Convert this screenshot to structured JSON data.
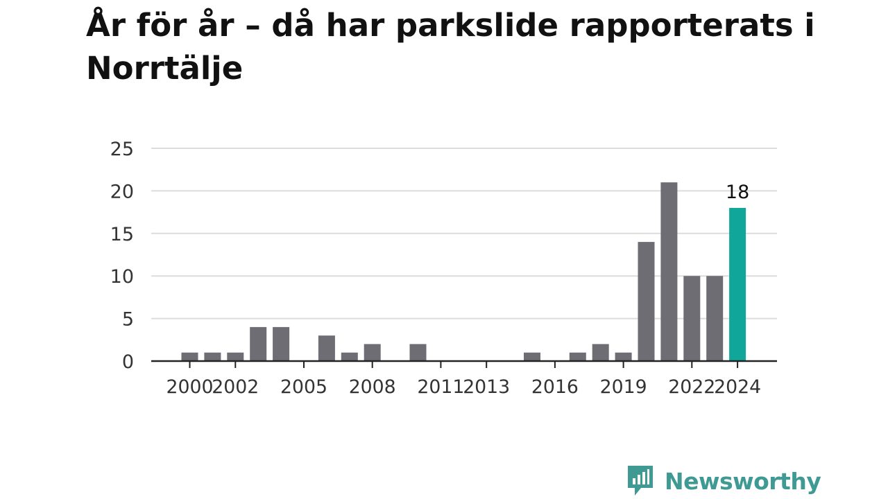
{
  "title": "År för år – då har parkslide rapporterats i Norrtälje",
  "brand": {
    "name": "Newsworthy",
    "color": "#3f9a93"
  },
  "colors": {
    "bar": "#6e6d73",
    "highlight": "#10a79a",
    "grid": "#dcdcdc",
    "axis": "#222222",
    "text": "#333333"
  },
  "chart_data": {
    "type": "bar",
    "title": "År för år – då har parkslide rapporterats i Norrtälje",
    "xlabel": "",
    "ylabel": "",
    "categories": [
      "2000",
      "2001",
      "2002",
      "2003",
      "2004",
      "2005",
      "2006",
      "2007",
      "2008",
      "2009",
      "2010",
      "2011",
      "2012",
      "2013",
      "2014",
      "2015",
      "2016",
      "2017",
      "2018",
      "2019",
      "2020",
      "2021",
      "2022",
      "2023",
      "2024"
    ],
    "values": [
      1,
      1,
      1,
      4,
      4,
      0,
      3,
      1,
      2,
      0,
      2,
      0,
      0,
      0,
      0,
      1,
      0,
      1,
      2,
      1,
      14,
      21,
      10,
      10,
      18
    ],
    "ylim": [
      0,
      25
    ],
    "yticks": [
      0,
      5,
      10,
      15,
      20,
      25
    ],
    "xticklabels": [
      "2000",
      "2002",
      "2005",
      "2008",
      "2011",
      "2013",
      "2016",
      "2019",
      "2022",
      "2024"
    ],
    "highlight": {
      "category": "2024",
      "label": "18"
    },
    "grid": true
  }
}
